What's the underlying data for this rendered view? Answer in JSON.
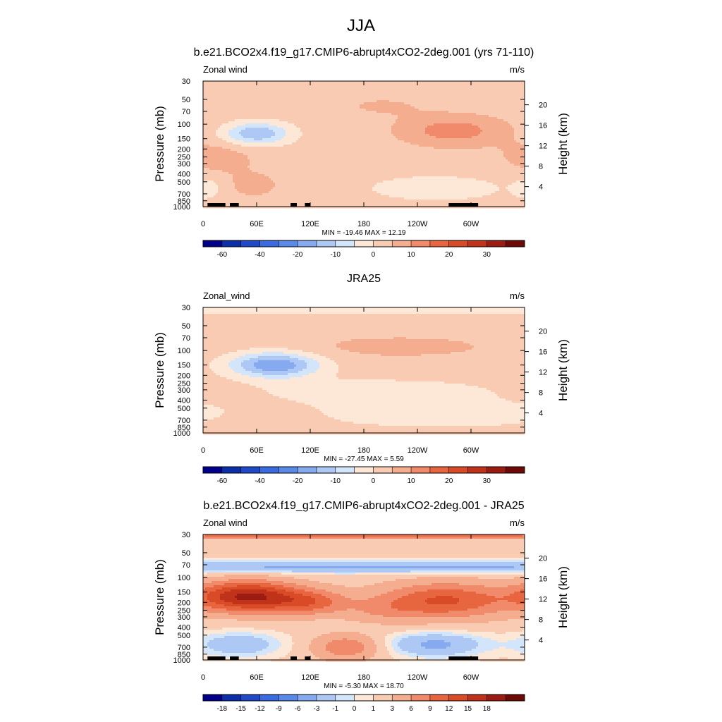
{
  "figure": {
    "season": "JJA",
    "panels": [
      {
        "title": "b.e21.BCO2x4.f19_g17.CMIP6-abrupt4xCO2-2deg.001 (yrs 71-110)",
        "left_label": "Zonal wind",
        "right_label": "m/s",
        "stats": "MIN = -19.46  MAX =  12.19"
      },
      {
        "title": "JRA25",
        "left_label": "Zonal_wind",
        "right_label": "m/s",
        "stats": "MIN = -27.45  MAX =   5.59"
      },
      {
        "title": "b.e21.BCO2x4.f19_g17.CMIP6-abrupt4xCO2-2deg.001 - JRA25",
        "left_label": "Zonal wind",
        "right_label": "m/s",
        "stats": "MIN =  -5.30  MAX =  18.70"
      }
    ]
  },
  "chart_data": [
    {
      "type": "heatmap",
      "title": "b.e21.BCO2x4.f19_g17.CMIP6-abrupt4xCO2-2deg.001 (yrs 71-110)",
      "xlabel": "",
      "ylabel": "Pressure (mb)",
      "y2label": "Height (km)",
      "x_ticks": [
        "0",
        "60E",
        "120E",
        "180",
        "120W",
        "60W"
      ],
      "x_tick_lon": [
        0,
        60,
        120,
        180,
        240,
        300
      ],
      "xlim": [
        0,
        360
      ],
      "y_ticks": [
        "30",
        "50",
        "70",
        "100",
        "150",
        "200",
        "250",
        "300",
        "400",
        "500",
        "700",
        "850",
        "1000"
      ],
      "y_tick_p": [
        30,
        50,
        70,
        100,
        150,
        200,
        250,
        300,
        400,
        500,
        700,
        850,
        1000
      ],
      "ylim": [
        30,
        1000
      ],
      "yscale": "log",
      "y2_ticks": [
        "20",
        "16",
        "12",
        "8",
        "4"
      ],
      "y2_tick_km": [
        20,
        16,
        12,
        8,
        4
      ],
      "background": 2.5,
      "features": [
        {
          "lon": 60,
          "p": 130,
          "sx": 26,
          "sy": 0.22,
          "amp": -17
        },
        {
          "lon": 15,
          "p": 250,
          "sx": 30,
          "sy": 0.3,
          "amp": 5
        },
        {
          "lon": 55,
          "p": 550,
          "sx": 26,
          "sy": 0.3,
          "amp": 4
        },
        {
          "lon": 5,
          "p": 600,
          "sx": 12,
          "sy": 0.22,
          "amp": -5
        },
        {
          "lon": 280,
          "p": 120,
          "sx": 42,
          "sy": 0.3,
          "amp": 10
        },
        {
          "lon": 200,
          "p": 60,
          "sx": 40,
          "sy": 0.22,
          "amp": 3
        },
        {
          "lon": 260,
          "p": 600,
          "sx": 60,
          "sy": 0.28,
          "amp": -5
        }
      ],
      "topography": [
        [
          5,
          25
        ],
        [
          30,
          40
        ],
        [
          98,
          105
        ],
        [
          114,
          120
        ],
        [
          275,
          308
        ]
      ],
      "colorbar": {
        "levels": [
          -70,
          -60,
          -50,
          -40,
          -30,
          -20,
          -15,
          -10,
          -5,
          0,
          5,
          10,
          15,
          20,
          25,
          30,
          35
        ],
        "labels": [
          "-60",
          "-40",
          "-20",
          "-10",
          "0",
          "10",
          "20",
          "30"
        ],
        "label_positions": [
          1,
          3,
          5,
          7,
          9,
          11,
          13,
          15
        ],
        "colors": [
          "#00008b",
          "#0b2fa8",
          "#1f49c7",
          "#3a6be0",
          "#5a8ae8",
          "#86aaf0",
          "#aec8f6",
          "#d2e5fa",
          "#fde8d8",
          "#f8cbb2",
          "#f5ad8f",
          "#f08a6a",
          "#e8663f",
          "#d94a26",
          "#c0321a",
          "#9b1c10",
          "#6e0a05"
        ]
      },
      "stats": "MIN = -19.46  MAX =  12.19"
    },
    {
      "type": "heatmap",
      "title": "JRA25",
      "xlabel": "",
      "ylabel": "Pressure (mb)",
      "y2label": "Height (km)",
      "x_ticks": [
        "0",
        "60E",
        "120E",
        "180",
        "120W",
        "60W"
      ],
      "x_tick_lon": [
        0,
        60,
        120,
        180,
        240,
        300
      ],
      "xlim": [
        0,
        360
      ],
      "y_ticks": [
        "30",
        "50",
        "70",
        "100",
        "150",
        "200",
        "250",
        "300",
        "400",
        "500",
        "700",
        "850",
        "1000"
      ],
      "y_tick_p": [
        30,
        50,
        70,
        100,
        150,
        200,
        250,
        300,
        400,
        500,
        700,
        850,
        1000
      ],
      "ylim": [
        30,
        1000
      ],
      "yscale": "log",
      "y2_ticks": [
        "20",
        "16",
        "12",
        "8",
        "4"
      ],
      "y2_tick_km": [
        20,
        16,
        12,
        8,
        4
      ],
      "background": 2.5,
      "features": [
        {
          "lon": 175,
          "p": 32,
          "sx": 500,
          "sy": 0.08,
          "amp": -7
        },
        {
          "lon": 80,
          "p": 150,
          "sx": 35,
          "sy": 0.25,
          "amp": -22
        },
        {
          "lon": 200,
          "p": 320,
          "sx": 90,
          "sy": 0.25,
          "amp": -6
        },
        {
          "lon": 270,
          "p": 600,
          "sx": 110,
          "sy": 0.25,
          "amp": -6
        },
        {
          "lon": 220,
          "p": 90,
          "sx": 85,
          "sy": 0.25,
          "amp": 4
        },
        {
          "lon": 70,
          "p": 700,
          "sx": 40,
          "sy": 0.22,
          "amp": 3
        }
      ],
      "topography": [],
      "colorbar": {
        "levels": [
          -70,
          -60,
          -50,
          -40,
          -30,
          -20,
          -15,
          -10,
          -5,
          0,
          5,
          10,
          15,
          20,
          25,
          30,
          35
        ],
        "labels": [
          "-60",
          "-40",
          "-20",
          "-10",
          "0",
          "10",
          "20",
          "30"
        ],
        "label_positions": [
          1,
          3,
          5,
          7,
          9,
          11,
          13,
          15
        ],
        "colors": [
          "#00008b",
          "#0b2fa8",
          "#1f49c7",
          "#3a6be0",
          "#5a8ae8",
          "#86aaf0",
          "#aec8f6",
          "#d2e5fa",
          "#fde8d8",
          "#f8cbb2",
          "#f5ad8f",
          "#f08a6a",
          "#e8663f",
          "#d94a26",
          "#c0321a",
          "#9b1c10",
          "#6e0a05"
        ]
      },
      "stats": "MIN = -27.45  MAX =   5.59"
    },
    {
      "type": "heatmap",
      "title": "b.e21.BCO2x4.f19_g17.CMIP6-abrupt4xCO2-2deg.001 - JRA25",
      "xlabel": "",
      "ylabel": "Pressure (mb)",
      "y2label": "Height (km)",
      "x_ticks": [
        "0",
        "60E",
        "120E",
        "180",
        "120W",
        "60W"
      ],
      "x_tick_lon": [
        0,
        60,
        120,
        180,
        240,
        300
      ],
      "xlim": [
        0,
        360
      ],
      "y_ticks": [
        "30",
        "50",
        "70",
        "100",
        "150",
        "200",
        "250",
        "300",
        "400",
        "500",
        "700",
        "850",
        "1000"
      ],
      "y_tick_p": [
        30,
        50,
        70,
        100,
        150,
        200,
        250,
        300,
        400,
        500,
        700,
        850,
        1000
      ],
      "ylim": [
        30,
        1000
      ],
      "yscale": "log",
      "y2_ticks": [
        "20",
        "16",
        "12",
        "8",
        "4"
      ],
      "y2_tick_km": [
        20,
        16,
        12,
        8,
        4
      ],
      "y2_tick_p": [
        55,
        103,
        194,
        356,
        616
      ],
      "background": 1.5,
      "features": [
        {
          "lon": 180,
          "p": 31,
          "sx": 500,
          "sy": 0.06,
          "amp": 8
        },
        {
          "lon": 180,
          "p": 75,
          "sx": 500,
          "sy": 0.12,
          "amp": -5
        },
        {
          "lon": 50,
          "p": 170,
          "sx": 40,
          "sy": 0.3,
          "amp": 17
        },
        {
          "lon": 120,
          "p": 200,
          "sx": 30,
          "sy": 0.25,
          "amp": 8
        },
        {
          "lon": 270,
          "p": 190,
          "sx": 50,
          "sy": 0.35,
          "amp": 11
        },
        {
          "lon": 200,
          "p": 250,
          "sx": 30,
          "sy": 0.25,
          "amp": 3
        },
        {
          "lon": 160,
          "p": 700,
          "sx": 25,
          "sy": 0.25,
          "amp": 7
        },
        {
          "lon": 40,
          "p": 650,
          "sx": 35,
          "sy": 0.25,
          "amp": -4
        },
        {
          "lon": 260,
          "p": 650,
          "sx": 40,
          "sy": 0.25,
          "amp": -5
        }
      ],
      "topography": [
        [
          5,
          25
        ],
        [
          30,
          40
        ],
        [
          98,
          105
        ],
        [
          114,
          120
        ],
        [
          275,
          308
        ]
      ],
      "colorbar": {
        "levels": [
          -21,
          -18,
          -15,
          -12,
          -9,
          -6,
          -3,
          -1,
          0,
          1,
          3,
          6,
          9,
          12,
          15,
          18,
          21
        ],
        "labels": [
          "-18",
          "-15",
          "-12",
          "-9",
          "-6",
          "-3",
          "-1",
          "0",
          "1",
          "3",
          "6",
          "9",
          "12",
          "15",
          "18"
        ],
        "label_positions": [
          1,
          2,
          3,
          4,
          5,
          6,
          7,
          8,
          9,
          10,
          11,
          12,
          13,
          14,
          15
        ],
        "colors": [
          "#00008b",
          "#0b2fa8",
          "#1f49c7",
          "#3a6be0",
          "#5a8ae8",
          "#86aaf0",
          "#aec8f6",
          "#d2e5fa",
          "#fde8d8",
          "#f8cbb2",
          "#f5ad8f",
          "#f08a6a",
          "#e8663f",
          "#d94a26",
          "#c0321a",
          "#9b1c10",
          "#6e0a05"
        ]
      },
      "stats": "MIN =  -5.30  MAX =  18.70"
    }
  ]
}
